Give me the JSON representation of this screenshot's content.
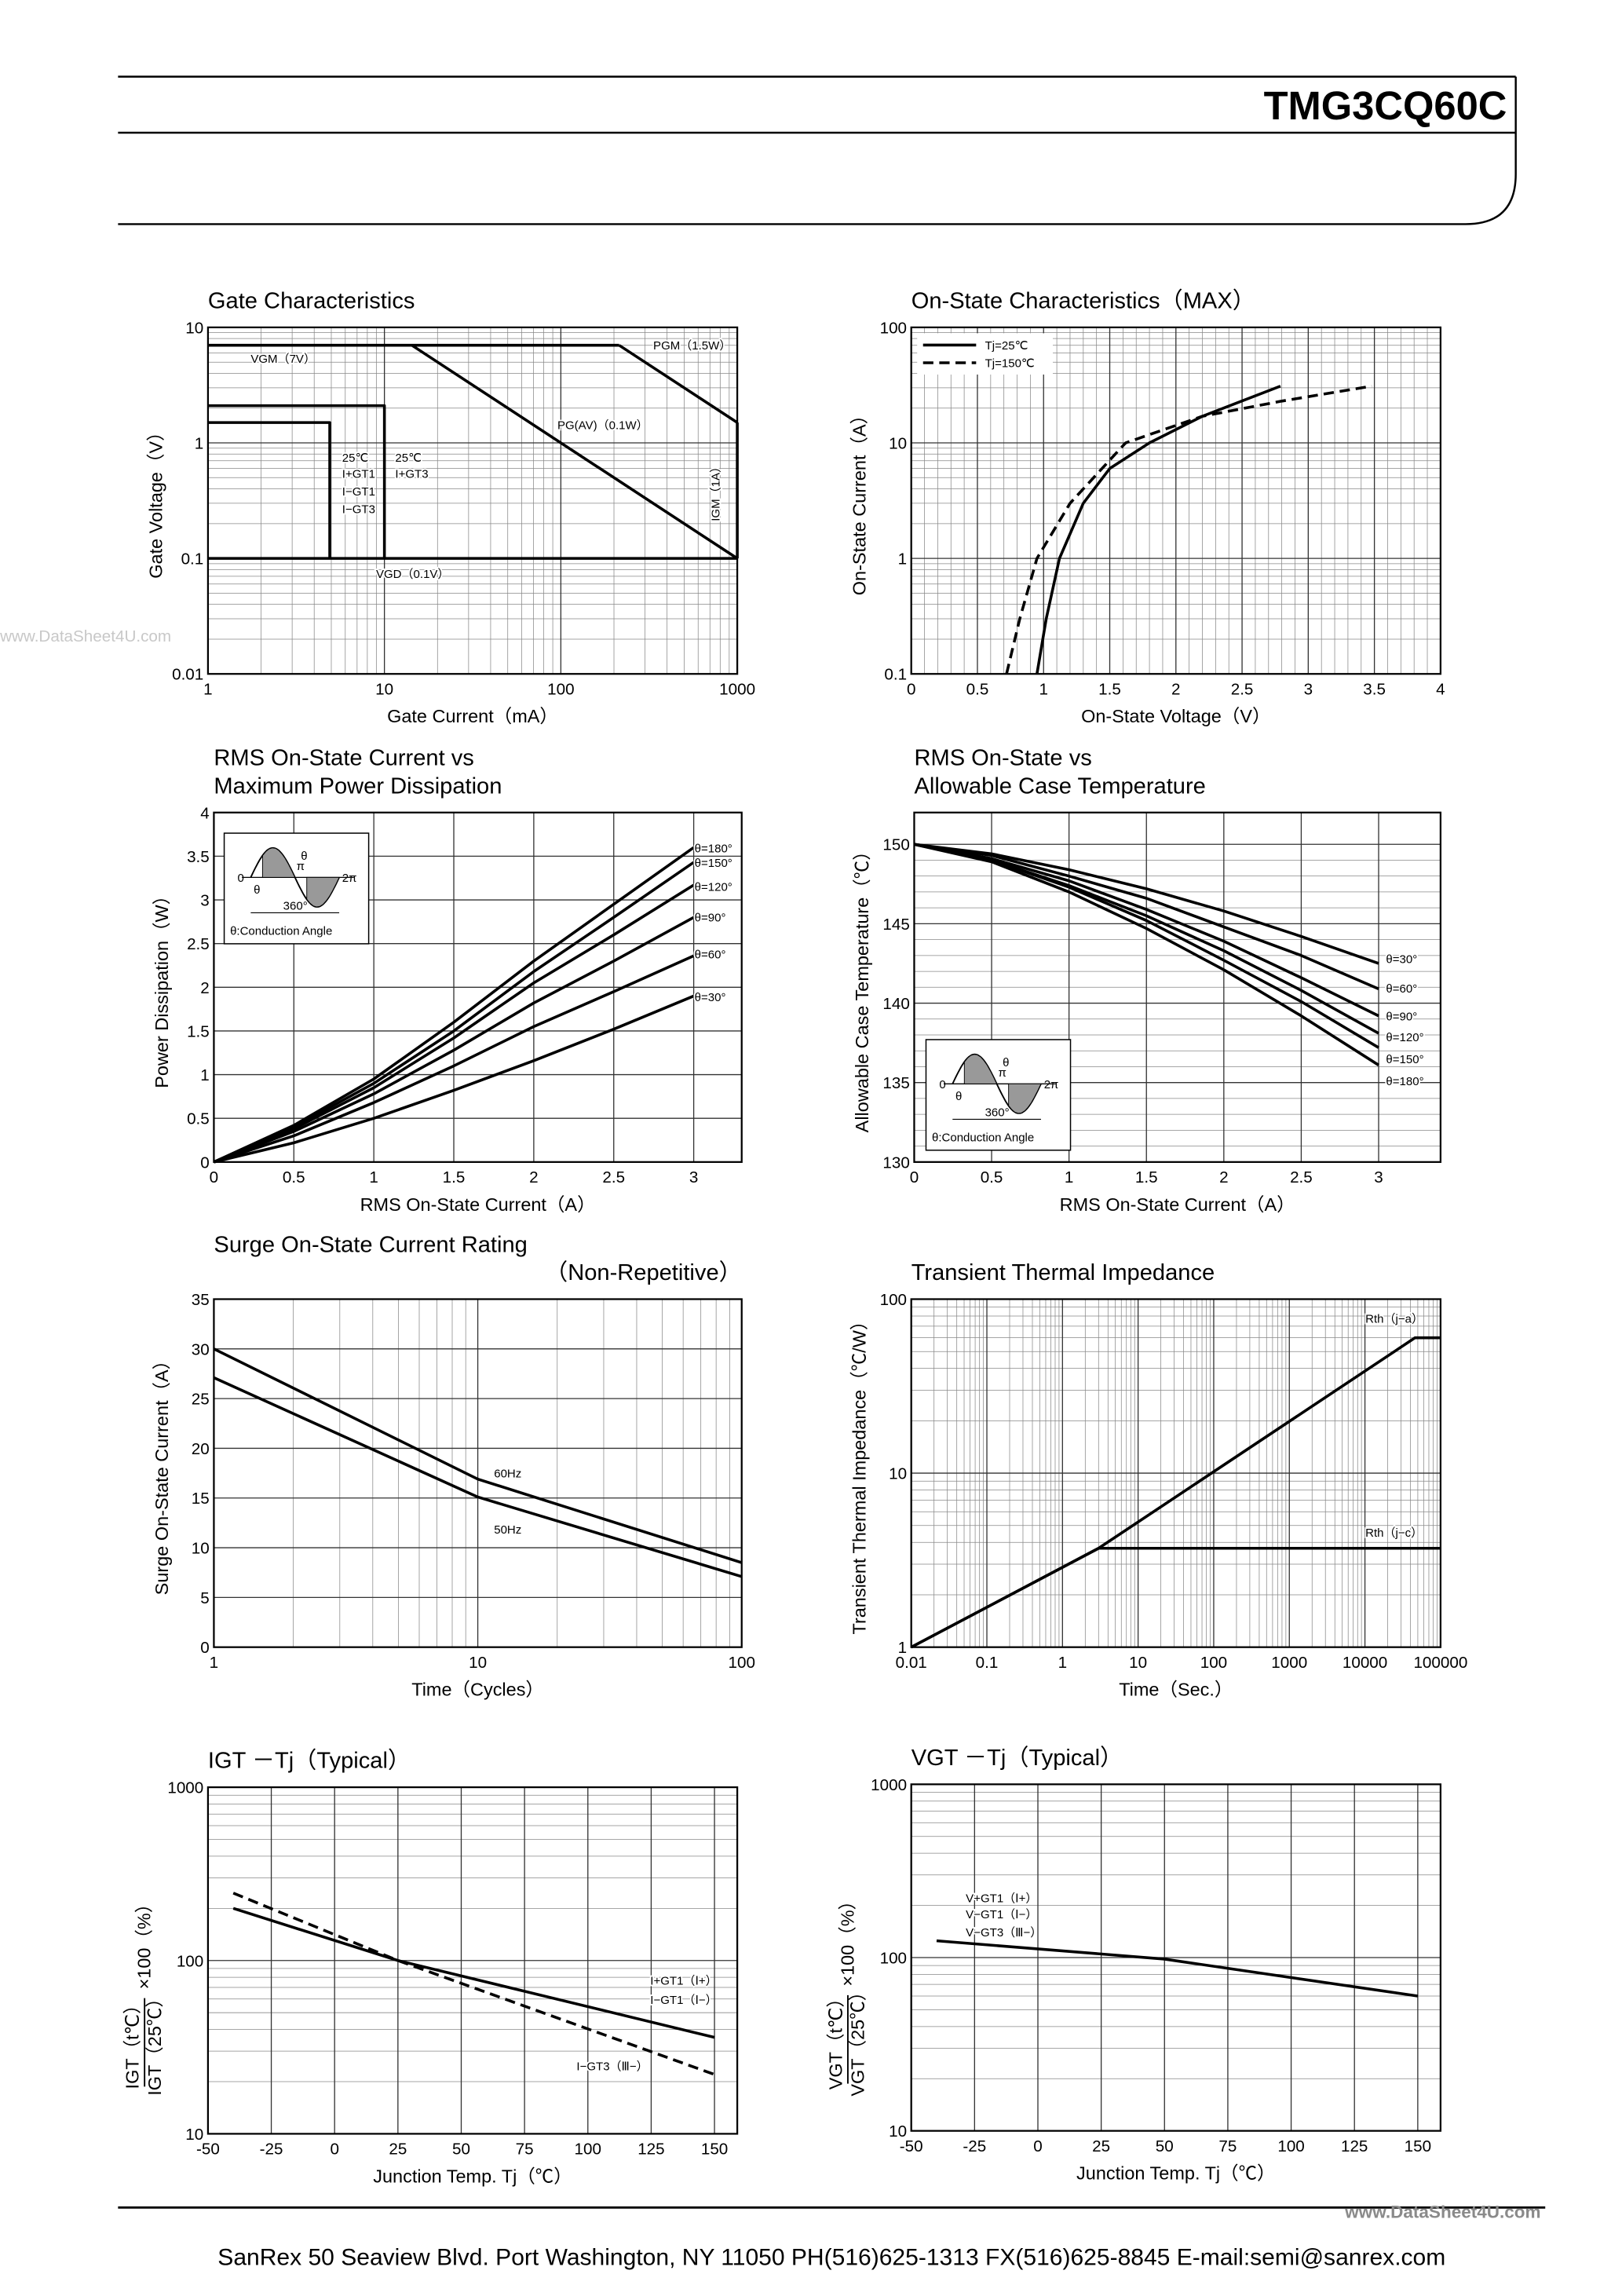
{
  "header": {
    "title": "TMG3CQ60C"
  },
  "watermarks": [
    "www.DataSheet4U.com",
    "www.DataSheet4U.com"
  ],
  "footer": {
    "text": "SanRex 50 Seaview Blvd. Port Washington, NY 11050 PH(516)625-1313 FX(516)625-8845 E-mail:semi@sanrex.com"
  },
  "chart_data": [
    {
      "type": "line",
      "title": [
        "Gate Characteristics"
      ],
      "xlabel": "Gate Current（mA）",
      "ylabel": "Gate Voltage（V）",
      "xlog": true,
      "ylog": true,
      "xlim": [
        1,
        1000
      ],
      "ylim": [
        0.01,
        10
      ],
      "xticks": [
        1,
        10,
        100,
        1000
      ],
      "yticks": [
        0.01,
        0.1,
        1,
        10
      ],
      "grid": true,
      "series": [
        {
          "x": [
            1,
            214
          ],
          "values": [
            7,
            7
          ],
          "color": "#000000"
        },
        {
          "x": [
            214,
            1000
          ],
          "values": [
            7,
            1.5
          ],
          "color": "#000000"
        },
        {
          "x": [
            14.3,
            1000
          ],
          "values": [
            7,
            0.1
          ],
          "color": "#000000"
        },
        {
          "x": [
            1000,
            1000
          ],
          "values": [
            1.5,
            0.1
          ],
          "color": "#000000"
        },
        {
          "x": [
            1,
            1000
          ],
          "values": [
            0.1,
            0.1
          ],
          "color": "#000000"
        },
        {
          "x": [
            1,
            10,
            10
          ],
          "values": [
            2.1,
            2.1,
            0.1
          ],
          "color": "#000000"
        },
        {
          "x": [
            1,
            4.9,
            4.9
          ],
          "values": [
            1.5,
            1.5,
            0.1
          ],
          "color": "#000000"
        }
      ],
      "annotations": [
        "VGM（7V）",
        "PGM（1.5W）",
        "PG(AV)（0.1W）",
        "IGM（1A）",
        "VGD（0.1V）",
        "25℃",
        "I+GT1",
        "I−GT1",
        "I−GT3",
        "25℃",
        "I+GT3"
      ]
    },
    {
      "type": "line",
      "title": [
        "On-State Characteristics（MAX）"
      ],
      "xlabel": "On-State Voltage（V）",
      "ylabel": "On-State Current（A）",
      "ylog": true,
      "xlim": [
        0,
        4
      ],
      "ylim": [
        0.1,
        100
      ],
      "xticks": [
        0,
        0.5,
        1,
        1.5,
        2,
        2.5,
        3,
        3.5,
        4
      ],
      "yticks": [
        0.1,
        1,
        10,
        100
      ],
      "grid": true,
      "x_minor": 5,
      "legend": "upper left",
      "series": [
        {
          "name": "Tj=25℃",
          "x": [
            0.95,
            1.02,
            1.12,
            1.3,
            1.5,
            1.8,
            2.2,
            2.79
          ],
          "values": [
            0.1,
            0.3,
            1,
            3,
            6,
            10,
            17,
            31
          ],
          "color": "#000000"
        },
        {
          "name": "Tj=150℃",
          "x": [
            0.72,
            0.82,
            0.95,
            1.2,
            1.62,
            2.2,
            2.8,
            3.48
          ],
          "values": [
            0.1,
            0.3,
            1,
            3,
            10,
            17,
            23,
            31
          ],
          "color": "#000000",
          "dash": true
        }
      ]
    },
    {
      "type": "line",
      "title": [
        "RMS On-State Current vs",
        "Maximum Power Dissipation"
      ],
      "xlabel": "RMS On-State Current（A）",
      "ylabel": "Power Dissipation（W）",
      "xlim": [
        0,
        3.3
      ],
      "ylim": [
        0,
        4
      ],
      "xticks": [
        0,
        0.5,
        1,
        1.5,
        2,
        2.5,
        3
      ],
      "yticks": [
        0,
        0.5,
        1,
        1.5,
        2,
        2.5,
        3,
        3.5,
        4
      ],
      "grid": true,
      "x": [
        0,
        0.5,
        1,
        1.5,
        2,
        2.5,
        3
      ],
      "series": [
        {
          "values": [
            0,
            0.42,
            0.95,
            1.6,
            2.3,
            2.95,
            3.6
          ],
          "color": "#000000"
        },
        {
          "values": [
            0,
            0.4,
            0.9,
            1.5,
            2.18,
            2.8,
            3.43
          ],
          "color": "#000000"
        },
        {
          "values": [
            0,
            0.38,
            0.85,
            1.42,
            2.05,
            2.6,
            3.17
          ],
          "color": "#000000"
        },
        {
          "values": [
            0,
            0.35,
            0.78,
            1.28,
            1.82,
            2.3,
            2.8
          ],
          "color": "#000000"
        },
        {
          "values": [
            0,
            0.3,
            0.68,
            1.1,
            1.55,
            1.95,
            2.36
          ],
          "color": "#000000"
        },
        {
          "values": [
            0,
            0.22,
            0.5,
            0.82,
            1.16,
            1.52,
            1.9
          ],
          "color": "#000000"
        }
      ],
      "annotations": [
        "θ=180°",
        "θ=150°",
        "θ=120°",
        "θ=90°",
        "θ=60°",
        "θ=30°"
      ],
      "inset": [
        "0",
        "π",
        "2π",
        "θ",
        "θ",
        "360°",
        "θ:Conduction Angle"
      ]
    },
    {
      "type": "line",
      "title": [
        "RMS On-State vs",
        "Allowable Case Temperature"
      ],
      "xlabel": "RMS On-State Current（A）",
      "ylabel": "Allowable Case Temperature（℃）",
      "xlim": [
        0,
        3.4
      ],
      "ylim": [
        130,
        152
      ],
      "xticks": [
        0,
        0.5,
        1,
        1.5,
        2,
        2.5,
        3
      ],
      "yticks": [
        130,
        135,
        140,
        145,
        150
      ],
      "grid": true,
      "y_minor": 5,
      "x": [
        0,
        0.5,
        1,
        1.5,
        2,
        2.5,
        3
      ],
      "series": [
        {
          "values": [
            150,
            149.4,
            148.4,
            147.2,
            145.8,
            144.2,
            142.5
          ],
          "color": "#000000"
        },
        {
          "values": [
            150,
            149.3,
            148.0,
            146.6,
            144.8,
            143.0,
            140.9
          ],
          "color": "#000000"
        },
        {
          "values": [
            150,
            149.1,
            147.7,
            145.9,
            143.9,
            141.6,
            139.2
          ],
          "color": "#000000"
        },
        {
          "values": [
            150,
            149.0,
            147.4,
            145.5,
            143.3,
            140.8,
            138.1
          ],
          "color": "#000000"
        },
        {
          "values": [
            150,
            149.0,
            147.3,
            145.2,
            142.7,
            140.1,
            137.2
          ],
          "color": "#000000"
        },
        {
          "values": [
            150,
            148.9,
            147.0,
            144.7,
            142.1,
            139.2,
            136.1
          ],
          "color": "#000000"
        }
      ],
      "annotations": [
        "θ=30°",
        "θ=60°",
        "θ=90°",
        "θ=120°",
        "θ=150°",
        "θ=180°"
      ],
      "inset": [
        "0",
        "π",
        "2π",
        "θ",
        "θ",
        "360°",
        "θ:Conduction Angle"
      ]
    },
    {
      "type": "line",
      "title": [
        "Surge On-State Current Rating",
        "（Non-Repetitive）"
      ],
      "xlabel": "Time（Cycles）",
      "ylabel": "Surge On-State Current（A）",
      "xlog": true,
      "xlim": [
        1,
        100
      ],
      "ylim": [
        0,
        35
      ],
      "xticks": [
        1,
        10,
        100
      ],
      "yticks": [
        0,
        5,
        10,
        15,
        20,
        25,
        30,
        35
      ],
      "grid": true,
      "series": [
        {
          "x": [
            1,
            10,
            100
          ],
          "values": [
            30,
            16.9,
            8.5
          ],
          "color": "#000000"
        },
        {
          "x": [
            1,
            10,
            100
          ],
          "values": [
            27.1,
            15.1,
            7.1
          ],
          "color": "#000000"
        }
      ],
      "annotations": [
        "60Hz",
        "50Hz"
      ]
    },
    {
      "type": "line",
      "title": [
        "Transient Thermal Impedance"
      ],
      "xlabel": "Time（Sec.）",
      "ylabel": "Transient Thermal Impedance（℃/W）",
      "xlog": true,
      "ylog": true,
      "xlim": [
        0.01,
        100000
      ],
      "ylim": [
        1,
        100
      ],
      "xticks": [
        0.01,
        0.1,
        1,
        10,
        100,
        1000,
        10000,
        100000
      ],
      "yticks": [
        1,
        10,
        100
      ],
      "grid": true,
      "series": [
        {
          "x": [
            0.01,
            3,
            46000,
            100000
          ],
          "values": [
            1,
            3.7,
            60,
            60
          ],
          "color": "#000000"
        },
        {
          "x": [
            0.01,
            3,
            100000
          ],
          "values": [
            1,
            3.7,
            3.7
          ],
          "color": "#000000"
        }
      ],
      "annotations": [
        "Rth（j−a）",
        "Rth（j−c）"
      ]
    },
    {
      "type": "line",
      "title": [
        "IGT －Tj（Typical）"
      ],
      "xlabel": "Junction Temp. Tj（℃）",
      "ylabel": [
        "IGT（t℃）",
        "IGT（25℃）",
        "×100（%）"
      ],
      "ylog": true,
      "xlim": [
        -50,
        159
      ],
      "ylim": [
        10,
        1000
      ],
      "xticks": [
        -50,
        -25,
        0,
        25,
        50,
        75,
        100,
        125,
        150
      ],
      "yticks": [
        10,
        100,
        1000
      ],
      "grid": true,
      "series": [
        {
          "x": [
            -40,
            25,
            150
          ],
          "values": [
            200,
            100,
            36
          ],
          "color": "#000000"
        },
        {
          "x": [
            -40,
            25,
            150
          ],
          "values": [
            245,
            100,
            22
          ],
          "color": "#000000",
          "dash": true
        }
      ],
      "annotations": [
        "I+GT1（Ⅰ+）",
        "I−GT1（Ⅰ−）",
        "I−GT3（Ⅲ−）"
      ]
    },
    {
      "type": "line",
      "title": [
        "VGT －Tj（Typical）"
      ],
      "xlabel": "Junction Temp. Tj（℃）",
      "ylabel": [
        "VGT（t℃）",
        "VGT（25℃）",
        "×100（%）"
      ],
      "ylog": true,
      "xlim": [
        -50,
        159
      ],
      "ylim": [
        10,
        1000
      ],
      "xticks": [
        -50,
        -25,
        0,
        25,
        50,
        75,
        100,
        125,
        150
      ],
      "yticks": [
        10,
        100,
        1000
      ],
      "grid": true,
      "series": [
        {
          "x": [
            -40,
            50,
            150
          ],
          "values": [
            125,
            98,
            60
          ],
          "color": "#000000"
        }
      ],
      "annotations": [
        "V+GT1（Ⅰ+）",
        "V−GT1（Ⅰ−）",
        "V−GT3（Ⅲ−）"
      ]
    }
  ]
}
